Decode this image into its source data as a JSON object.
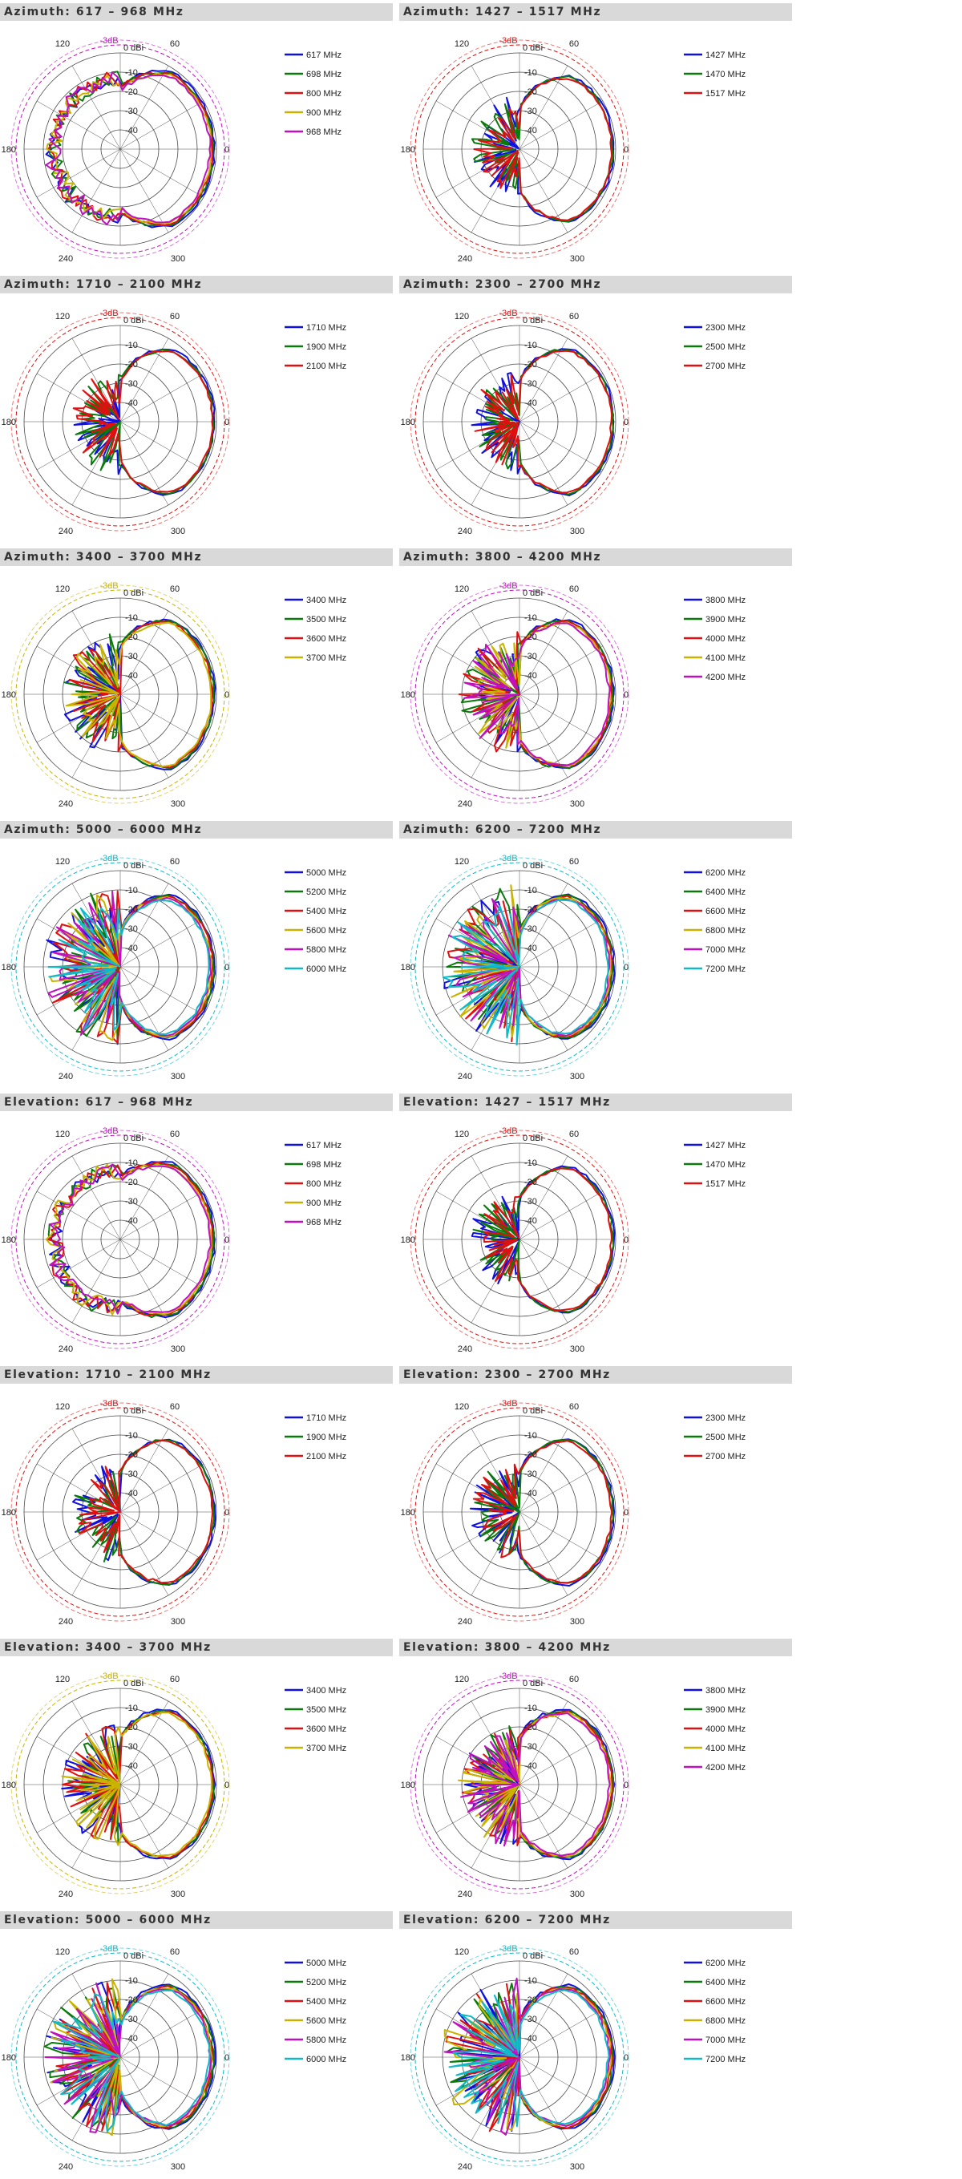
{
  "colors": {
    "blue": "#1010e0",
    "green": "#0a7a0a",
    "red": "#e01010",
    "yellow": "#c8b400",
    "magenta": "#c010c0",
    "cyan": "#10b8c8",
    "grid": "#4a4a4a",
    "header_bg": "#d9d9d9"
  },
  "axis_labels": {
    "db_ticks": [
      "0 dBi",
      "-10",
      "-20",
      "-30",
      "-40"
    ],
    "ref_label": "-3dB",
    "angles": [
      "0",
      "60",
      "120",
      "180",
      "240",
      "300"
    ]
  },
  "chart_data": [
    {
      "type": "polar",
      "title": "Azimuth:  617 – 968 MHz",
      "plane": "azimuth",
      "band": "low",
      "ref_color": "magenta",
      "series": [
        {
          "name": "617 MHz",
          "color": "blue"
        },
        {
          "name": "698 MHz",
          "color": "green"
        },
        {
          "name": "800 MHz",
          "color": "red"
        },
        {
          "name": "900 MHz",
          "color": "yellow"
        },
        {
          "name": "968 MHz",
          "color": "magenta"
        }
      ]
    },
    {
      "type": "polar",
      "title": "Azimuth:  1427 – 1517 MHz",
      "plane": "azimuth",
      "band": "mid",
      "ref_color": "red",
      "series": [
        {
          "name": "1427 MHz",
          "color": "blue"
        },
        {
          "name": "1470 MHz",
          "color": "green"
        },
        {
          "name": "1517 MHz",
          "color": "red"
        }
      ]
    },
    {
      "type": "polar",
      "title": "Azimuth:  1710 – 2100 MHz",
      "plane": "azimuth",
      "band": "mid",
      "ref_color": "red",
      "series": [
        {
          "name": "1710 MHz",
          "color": "blue"
        },
        {
          "name": "1900 MHz",
          "color": "green"
        },
        {
          "name": "2100 MHz",
          "color": "red"
        }
      ]
    },
    {
      "type": "polar",
      "title": "Azimuth:  2300 – 2700 MHz",
      "plane": "azimuth",
      "band": "mid",
      "ref_color": "red",
      "series": [
        {
          "name": "2300 MHz",
          "color": "blue"
        },
        {
          "name": "2500 MHz",
          "color": "green"
        },
        {
          "name": "2700 MHz",
          "color": "red"
        }
      ]
    },
    {
      "type": "polar",
      "title": "Azimuth:  3400 – 3700 MHz",
      "plane": "azimuth",
      "band": "high",
      "ref_color": "yellow",
      "series": [
        {
          "name": "3400 MHz",
          "color": "blue"
        },
        {
          "name": "3500 MHz",
          "color": "green"
        },
        {
          "name": "3600 MHz",
          "color": "red"
        },
        {
          "name": "3700 MHz",
          "color": "yellow"
        }
      ]
    },
    {
      "type": "polar",
      "title": "Azimuth:  3800 – 4200 MHz",
      "plane": "azimuth",
      "band": "high",
      "ref_color": "magenta",
      "series": [
        {
          "name": "3800 MHz",
          "color": "blue"
        },
        {
          "name": "3900 MHz",
          "color": "green"
        },
        {
          "name": "4000 MHz",
          "color": "red"
        },
        {
          "name": "4100 MHz",
          "color": "yellow"
        },
        {
          "name": "4200 MHz",
          "color": "magenta"
        }
      ]
    },
    {
      "type": "polar",
      "title": "Azimuth:  5000 – 6000 MHz",
      "plane": "azimuth",
      "band": "vhigh",
      "ref_color": "cyan",
      "series": [
        {
          "name": "5000 MHz",
          "color": "blue"
        },
        {
          "name": "5200 MHz",
          "color": "green"
        },
        {
          "name": "5400 MHz",
          "color": "red"
        },
        {
          "name": "5600 MHz",
          "color": "yellow"
        },
        {
          "name": "5800 MHz",
          "color": "magenta"
        },
        {
          "name": "6000 MHz",
          "color": "cyan"
        }
      ]
    },
    {
      "type": "polar",
      "title": "Azimuth:  6200 – 7200 MHz",
      "plane": "azimuth",
      "band": "vhigh",
      "ref_color": "cyan",
      "series": [
        {
          "name": "6200 MHz",
          "color": "blue"
        },
        {
          "name": "6400 MHz",
          "color": "green"
        },
        {
          "name": "6600 MHz",
          "color": "red"
        },
        {
          "name": "6800 MHz",
          "color": "yellow"
        },
        {
          "name": "7000 MHz",
          "color": "magenta"
        },
        {
          "name": "7200 MHz",
          "color": "cyan"
        }
      ]
    },
    {
      "type": "polar",
      "title": "Elevation: 617 – 968 MHz",
      "plane": "elevation",
      "band": "low",
      "ref_color": "magenta",
      "series": [
        {
          "name": "617 MHz",
          "color": "blue"
        },
        {
          "name": "698 MHz",
          "color": "green"
        },
        {
          "name": "800 MHz",
          "color": "red"
        },
        {
          "name": "900 MHz",
          "color": "yellow"
        },
        {
          "name": "968 MHz",
          "color": "magenta"
        }
      ]
    },
    {
      "type": "polar",
      "title": "Elevation:  1427 – 1517 MHz",
      "plane": "elevation",
      "band": "mid",
      "ref_color": "red",
      "series": [
        {
          "name": "1427 MHz",
          "color": "blue"
        },
        {
          "name": "1470 MHz",
          "color": "green"
        },
        {
          "name": "1517 MHz",
          "color": "red"
        }
      ]
    },
    {
      "type": "polar",
      "title": "Elevation:  1710 – 2100 MHz",
      "plane": "elevation",
      "band": "mid",
      "ref_color": "red",
      "series": [
        {
          "name": "1710 MHz",
          "color": "blue"
        },
        {
          "name": "1900 MHz",
          "color": "green"
        },
        {
          "name": "2100 MHz",
          "color": "red"
        }
      ]
    },
    {
      "type": "polar",
      "title": "Elevation: 2300 – 2700 MHz",
      "plane": "elevation",
      "band": "mid",
      "ref_color": "red",
      "series": [
        {
          "name": "2300 MHz",
          "color": "blue"
        },
        {
          "name": "2500 MHz",
          "color": "green"
        },
        {
          "name": "2700 MHz",
          "color": "red"
        }
      ]
    },
    {
      "type": "polar",
      "title": "Elevation:  3400 – 3700 MHz",
      "plane": "elevation",
      "band": "high",
      "ref_color": "yellow",
      "series": [
        {
          "name": "3400 MHz",
          "color": "blue"
        },
        {
          "name": "3500 MHz",
          "color": "green"
        },
        {
          "name": "3600 MHz",
          "color": "red"
        },
        {
          "name": "3700 MHz",
          "color": "yellow"
        }
      ]
    },
    {
      "type": "polar",
      "title": "Elevation: 3800 – 4200 MHz",
      "plane": "elevation",
      "band": "high",
      "ref_color": "magenta",
      "series": [
        {
          "name": "3800 MHz",
          "color": "blue"
        },
        {
          "name": "3900 MHz",
          "color": "green"
        },
        {
          "name": "4000 MHz",
          "color": "red"
        },
        {
          "name": "4100 MHz",
          "color": "yellow"
        },
        {
          "name": "4200 MHz",
          "color": "magenta"
        }
      ]
    },
    {
      "type": "polar",
      "title": "Elevation:  5000 – 6000 MHz",
      "plane": "elevation",
      "band": "vhigh",
      "ref_color": "cyan",
      "series": [
        {
          "name": "5000 MHz",
          "color": "blue"
        },
        {
          "name": "5200 MHz",
          "color": "green"
        },
        {
          "name": "5400 MHz",
          "color": "red"
        },
        {
          "name": "5600 MHz",
          "color": "yellow"
        },
        {
          "name": "5800 MHz",
          "color": "magenta"
        },
        {
          "name": "6000 MHz",
          "color": "cyan"
        }
      ]
    },
    {
      "type": "polar",
      "title": "Elevation:  6200 – 7200 MHz",
      "plane": "elevation",
      "band": "vhigh",
      "ref_color": "cyan",
      "series": [
        {
          "name": "6200 MHz",
          "color": "blue"
        },
        {
          "name": "6400 MHz",
          "color": "green"
        },
        {
          "name": "6600 MHz",
          "color": "red"
        },
        {
          "name": "6800 MHz",
          "color": "yellow"
        },
        {
          "name": "7000 MHz",
          "color": "magenta"
        },
        {
          "name": "7200 MHz",
          "color": "cyan"
        }
      ]
    }
  ]
}
